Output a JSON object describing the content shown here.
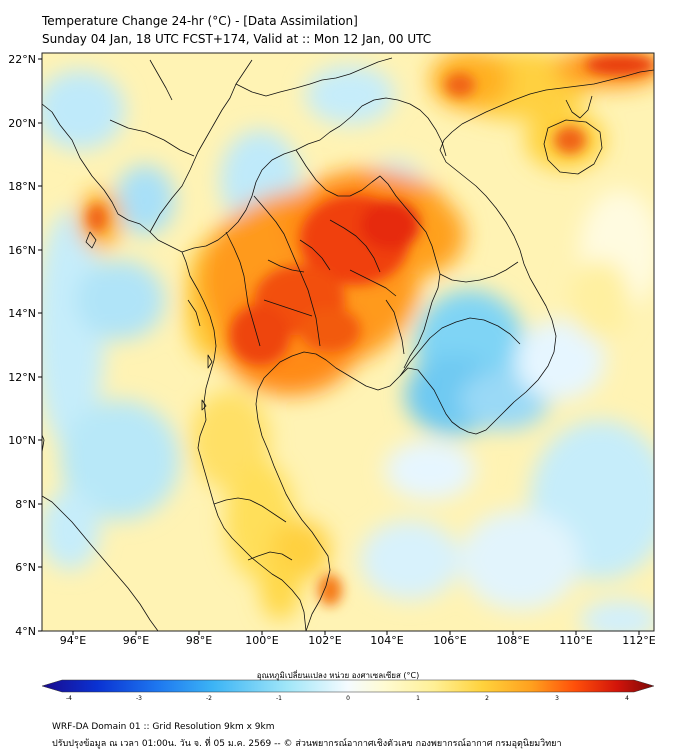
{
  "title": {
    "line1": "Temperature Change 24-hr (°C) - [Data Assimilation]",
    "line2": "Sunday 04 Jan, 18 UTC FCST+174, Valid at :: Mon 12 Jan, 00 UTC"
  },
  "axes": {
    "lon_ticks": [
      "94°E",
      "96°E",
      "98°E",
      "100°E",
      "102°E",
      "104°E",
      "106°E",
      "108°E",
      "110°E",
      "112°E"
    ],
    "lat_ticks": [
      "22°N",
      "20°N",
      "18°N",
      "16°N",
      "14°N",
      "12°N",
      "10°N",
      "8°N",
      "6°N",
      "4°N"
    ],
    "lon_range": [
      93.0,
      112.5
    ],
    "lat_range": [
      4.0,
      22.2
    ]
  },
  "colorbar": {
    "title": "อุณหภูมิเปลี่ยนแปลง หน่วย องศาเซลเซียส (°C)",
    "ticks": [
      "-4",
      "-3",
      "-2",
      "-1",
      "0",
      "1",
      "2",
      "3",
      "4"
    ],
    "range": [
      -4,
      4
    ],
    "colors": [
      "#1a0a8c",
      "#0a32d2",
      "#1e78f0",
      "#3cb4f5",
      "#8cdcf5",
      "#e6f5ff",
      "#fffff0",
      "#fff0a0",
      "#ffd23c",
      "#ffa01e",
      "#ff5a0a",
      "#dc140a",
      "#8c0a0a"
    ]
  },
  "footer": {
    "line1": "WRF-DA Domain 01 :: Grid Resolution 9km x 9km",
    "line2": "ปรับปรุงข้อมูล ณ เวลา 01:00น. วัน จ. ที่ 05 ม.ค. 2569 -- © ส่วนพยากรณ์อากาศเชิงตัวเลข กองพยากรณ์อากาศ กรมอุตุนิยมวิทยา"
  }
}
